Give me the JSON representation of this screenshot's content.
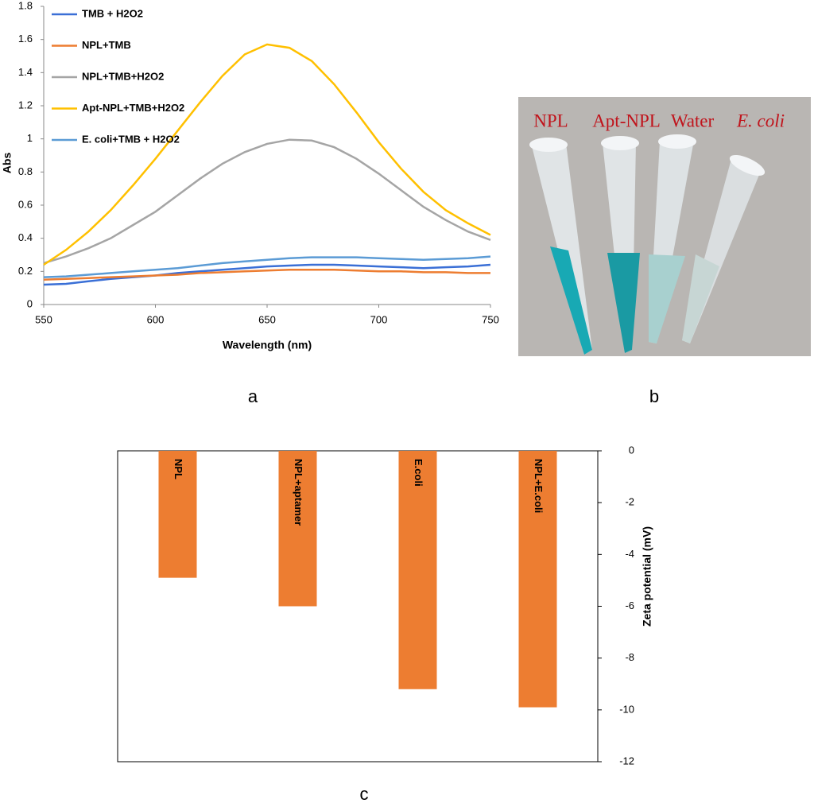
{
  "chart_data": [
    {
      "type": "line",
      "xlabel": "Wavelength (nm)",
      "ylabel": "Abs",
      "x": [
        550,
        560,
        570,
        580,
        590,
        600,
        610,
        620,
        630,
        640,
        650,
        660,
        670,
        680,
        690,
        700,
        710,
        720,
        730,
        740,
        750
      ],
      "xlim": [
        550,
        750
      ],
      "xticks": [
        550,
        600,
        650,
        700,
        750
      ],
      "ylim": [
        0,
        1.8
      ],
      "yticks": [
        0,
        0.2,
        0.4,
        0.6,
        0.8,
        1,
        1.2,
        1.4,
        1.6,
        1.8
      ],
      "grid": false,
      "legend": "upper left",
      "series": [
        {
          "name": "TMB + H2O2",
          "color": "#3a6fd6",
          "values": [
            0.12,
            0.125,
            0.14,
            0.155,
            0.165,
            0.175,
            0.19,
            0.2,
            0.21,
            0.22,
            0.23,
            0.235,
            0.24,
            0.24,
            0.235,
            0.23,
            0.225,
            0.22,
            0.225,
            0.23,
            0.24
          ]
        },
        {
          "name": "NPL+TMB",
          "color": "#ed7d31",
          "values": [
            0.15,
            0.155,
            0.16,
            0.165,
            0.17,
            0.175,
            0.18,
            0.19,
            0.195,
            0.2,
            0.205,
            0.21,
            0.21,
            0.21,
            0.205,
            0.2,
            0.2,
            0.195,
            0.195,
            0.19,
            0.19
          ]
        },
        {
          "name": "NPL+TMB+H2O2",
          "color": "#a5a5a5",
          "values": [
            0.25,
            0.29,
            0.34,
            0.4,
            0.48,
            0.56,
            0.66,
            0.76,
            0.85,
            0.92,
            0.97,
            0.995,
            0.99,
            0.95,
            0.88,
            0.79,
            0.69,
            0.59,
            0.51,
            0.44,
            0.39
          ]
        },
        {
          "name": "Apt-NPL+TMB+H2O2",
          "color": "#ffc000",
          "values": [
            0.24,
            0.33,
            0.44,
            0.57,
            0.72,
            0.88,
            1.05,
            1.22,
            1.38,
            1.51,
            1.57,
            1.55,
            1.47,
            1.33,
            1.16,
            0.98,
            0.82,
            0.68,
            0.57,
            0.49,
            0.42
          ]
        },
        {
          "name": "E. coli+TMB + H2O2",
          "color": "#5b9bd5",
          "values": [
            0.165,
            0.17,
            0.18,
            0.19,
            0.2,
            0.21,
            0.22,
            0.235,
            0.25,
            0.26,
            0.27,
            0.28,
            0.285,
            0.285,
            0.285,
            0.28,
            0.275,
            0.27,
            0.275,
            0.28,
            0.29
          ]
        }
      ]
    },
    {
      "type": "bar",
      "ylabel": "Zeta potential (mV)",
      "categories": [
        "NPL",
        "NPL+aptamer",
        "E.coli",
        "NPL+E.coli"
      ],
      "values": [
        -4.9,
        -6.0,
        -9.2,
        -9.9
      ],
      "color": "#ed7d31",
      "ylim": [
        -12,
        0
      ],
      "yticks": [
        0,
        -2,
        -4,
        -6,
        -8,
        -10,
        -12
      ],
      "grid": false,
      "yaxis_side": "right"
    }
  ],
  "photo": {
    "labels": [
      "NPL",
      "Apt-NPL",
      "Water",
      "E. coli"
    ]
  },
  "panel_labels": [
    "a",
    "b",
    "c"
  ]
}
